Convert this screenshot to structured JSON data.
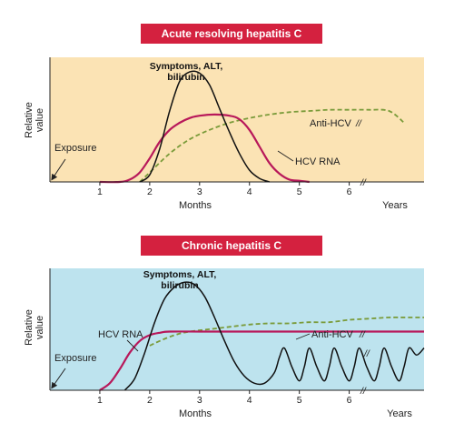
{
  "colors": {
    "acute_bg": "#fbe3b4",
    "chronic_bg": "#bde3ee",
    "banner": "#d4213f",
    "symptoms_line": "#111111",
    "hcv_rna_line": "#b8185a",
    "anti_hcv_line": "#7a9b3a"
  },
  "chart_data": [
    {
      "type": "line",
      "title": "Acute resolving hepatitis C",
      "xlabel": "Months",
      "x2label": "Years",
      "ylabel": "Relative value",
      "xticks": [
        "1",
        "2",
        "3",
        "4",
        "5",
        "6"
      ],
      "xlim": [
        0,
        7.5
      ],
      "ylim": [
        0,
        1
      ],
      "grid": false,
      "annotations": {
        "exposure": "Exposure",
        "axis_break": "//",
        "anti_hcv_break": "//"
      },
      "series": [
        {
          "name": "Symptoms, ALT, bilirubin",
          "label_lines": [
            "Symptoms, ALT,",
            "bilirubin"
          ],
          "style": "solid",
          "x": [
            1.8,
            2.0,
            2.2,
            2.4,
            2.6,
            2.8,
            3.0,
            3.2,
            3.4,
            3.6,
            3.8,
            4.0,
            4.2,
            4.4
          ],
          "y": [
            0.0,
            0.06,
            0.28,
            0.6,
            0.85,
            0.93,
            0.92,
            0.82,
            0.62,
            0.42,
            0.24,
            0.1,
            0.03,
            0.0
          ]
        },
        {
          "name": "HCV RNA",
          "style": "solid",
          "x": [
            1.0,
            1.4,
            1.6,
            1.8,
            2.0,
            2.2,
            2.4,
            2.6,
            2.8,
            3.0,
            3.3,
            3.6,
            3.8,
            4.0,
            4.2,
            4.4,
            4.6,
            4.8,
            5.0,
            5.2
          ],
          "y": [
            0.0,
            0.0,
            0.02,
            0.08,
            0.2,
            0.34,
            0.44,
            0.5,
            0.54,
            0.56,
            0.57,
            0.56,
            0.53,
            0.44,
            0.3,
            0.16,
            0.07,
            0.02,
            0.01,
            0.0
          ]
        },
        {
          "name": "Anti-HCV",
          "style": "dashed",
          "x": [
            1.8,
            2.0,
            2.4,
            2.8,
            3.2,
            3.6,
            4.0,
            4.4,
            4.8,
            5.2,
            5.6,
            6.0,
            6.4,
            6.8,
            7.1
          ],
          "y": [
            0.0,
            0.08,
            0.24,
            0.36,
            0.44,
            0.5,
            0.54,
            0.57,
            0.59,
            0.6,
            0.61,
            0.61,
            0.61,
            0.6,
            0.5
          ]
        }
      ]
    },
    {
      "type": "line",
      "title": "Chronic hepatitis C",
      "xlabel": "Months",
      "x2label": "Years",
      "ylabel": "Relative value",
      "xticks": [
        "1",
        "2",
        "3",
        "4",
        "5",
        "6"
      ],
      "xlim": [
        0,
        7.5
      ],
      "ylim": [
        0,
        1
      ],
      "grid": false,
      "annotations": {
        "exposure": "Exposure",
        "axis_break": "//",
        "anti_hcv_break": "//",
        "rna_break": "//"
      },
      "series": [
        {
          "name": "Symptoms, ALT, bilirubin",
          "label_lines": [
            "Symptoms, ALT,",
            "bilirubin"
          ],
          "style": "solid",
          "x": [
            1.5,
            1.7,
            1.9,
            2.1,
            2.3,
            2.5,
            2.7,
            2.9,
            3.1,
            3.3,
            3.5,
            3.7,
            3.9,
            4.1,
            4.3,
            4.5,
            4.6,
            4.7,
            4.85,
            5.0,
            5.1,
            5.2,
            5.35,
            5.5,
            5.6,
            5.7,
            5.85,
            6.0,
            6.1,
            6.2,
            6.35,
            6.5,
            6.6,
            6.7,
            6.85,
            7.0,
            7.1,
            7.2,
            7.35,
            7.5
          ],
          "y": [
            0.0,
            0.1,
            0.32,
            0.58,
            0.78,
            0.88,
            0.92,
            0.9,
            0.8,
            0.62,
            0.42,
            0.24,
            0.12,
            0.06,
            0.06,
            0.15,
            0.28,
            0.36,
            0.2,
            0.08,
            0.2,
            0.36,
            0.2,
            0.08,
            0.2,
            0.36,
            0.2,
            0.08,
            0.2,
            0.36,
            0.2,
            0.08,
            0.2,
            0.36,
            0.2,
            0.08,
            0.2,
            0.36,
            0.3,
            0.36
          ]
        },
        {
          "name": "HCV RNA",
          "style": "solid",
          "x": [
            1.0,
            1.2,
            1.4,
            1.6,
            1.8,
            2.0,
            2.2,
            2.4,
            3.0,
            4.0,
            5.0,
            6.0,
            7.0,
            7.5
          ],
          "y": [
            0.0,
            0.06,
            0.18,
            0.32,
            0.42,
            0.47,
            0.49,
            0.5,
            0.5,
            0.5,
            0.5,
            0.5,
            0.5,
            0.5
          ]
        },
        {
          "name": "Anti-HCV",
          "style": "dashed",
          "x": [
            2.0,
            2.2,
            2.5,
            2.8,
            3.2,
            3.6,
            4.0,
            4.4,
            4.8,
            5.2,
            5.6,
            6.0,
            6.4,
            6.8,
            7.2,
            7.5
          ],
          "y": [
            0.38,
            0.42,
            0.47,
            0.5,
            0.52,
            0.54,
            0.56,
            0.57,
            0.57,
            0.58,
            0.58,
            0.6,
            0.61,
            0.62,
            0.62,
            0.62
          ]
        }
      ]
    }
  ]
}
